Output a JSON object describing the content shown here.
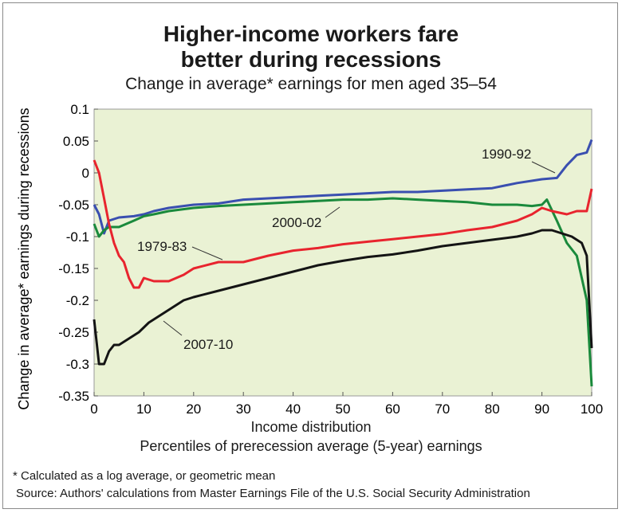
{
  "title_line1": "Higher-income workers fare",
  "title_line2": "better during recessions",
  "subtitle": "Change in average* earnings for men aged 35–54",
  "xlabel_line1": "Income distribution",
  "xlabel_line2": "Percentiles of prerecession average (5-year) earnings",
  "footnote": "* Calculated as a log average, or geometric mean",
  "source": "Source: Authors' calculations from Master Earnings File of the U.S. Social Security Administration",
  "colors": {
    "plot_bg": "#eaf2d4",
    "1990-92": "#3a4fb0",
    "2000-02": "#1a8a3c",
    "1979-83": "#e8242e",
    "2007-10": "#141414"
  },
  "chart_data": {
    "type": "line",
    "title": "Higher-income workers fare better during recessions",
    "subtitle": "Change in average* earnings for men aged 35–54",
    "xlabel": "Income distribution",
    "ylabel": "Change in average* earnings during recessions",
    "xlim": [
      0,
      100
    ],
    "ylim": [
      -0.35,
      0.1
    ],
    "xticks": [
      "0",
      "10",
      "20",
      "30",
      "40",
      "50",
      "60",
      "70",
      "80",
      "90",
      "100"
    ],
    "yticks": [
      "0.1",
      "0.05",
      "0",
      "-0.05",
      "-0.1",
      "-0.15",
      "-0.2",
      "-0.25",
      "-0.3",
      "-0.35"
    ],
    "grid": false,
    "legend": "inline labels",
    "annotations": [
      {
        "text": "1990-92",
        "series": "1990-92"
      },
      {
        "text": "2000-02",
        "series": "2000-02"
      },
      {
        "text": "1979-83",
        "series": "1979-83"
      },
      {
        "text": "2007-10",
        "series": "2007-10"
      }
    ],
    "series": [
      {
        "name": "1990-92",
        "color": "#3a4fb0",
        "x": [
          0,
          1,
          2,
          3,
          5,
          8,
          10,
          12,
          15,
          20,
          25,
          30,
          35,
          40,
          45,
          50,
          55,
          60,
          65,
          70,
          75,
          80,
          85,
          90,
          93,
          95,
          97,
          99,
          100
        ],
        "y": [
          -0.05,
          -0.065,
          -0.095,
          -0.075,
          -0.07,
          -0.068,
          -0.065,
          -0.06,
          -0.055,
          -0.05,
          -0.048,
          -0.042,
          -0.04,
          -0.038,
          -0.036,
          -0.034,
          -0.032,
          -0.03,
          -0.03,
          -0.028,
          -0.026,
          -0.024,
          -0.016,
          -0.01,
          -0.008,
          0.012,
          0.028,
          0.032,
          0.052
        ]
      },
      {
        "name": "2000-02",
        "color": "#1a8a3c",
        "x": [
          0,
          1,
          2,
          3,
          5,
          8,
          10,
          12,
          15,
          20,
          25,
          30,
          35,
          40,
          45,
          50,
          55,
          60,
          65,
          70,
          75,
          80,
          85,
          88,
          90,
          91,
          93,
          95,
          97,
          99,
          100
        ],
        "y": [
          -0.08,
          -0.1,
          -0.09,
          -0.085,
          -0.085,
          -0.075,
          -0.068,
          -0.065,
          -0.06,
          -0.055,
          -0.052,
          -0.05,
          -0.048,
          -0.046,
          -0.044,
          -0.042,
          -0.042,
          -0.04,
          -0.042,
          -0.044,
          -0.046,
          -0.05,
          -0.05,
          -0.052,
          -0.05,
          -0.042,
          -0.075,
          -0.11,
          -0.13,
          -0.2,
          -0.335
        ]
      },
      {
        "name": "1979-83",
        "color": "#e8242e",
        "x": [
          0,
          1,
          2,
          3,
          4,
          5,
          6,
          7,
          8,
          9,
          10,
          12,
          15,
          18,
          20,
          25,
          30,
          35,
          40,
          45,
          50,
          55,
          60,
          65,
          70,
          75,
          80,
          85,
          88,
          90,
          92,
          95,
          97,
          99,
          100
        ],
        "y": [
          0.02,
          0.0,
          -0.04,
          -0.08,
          -0.11,
          -0.13,
          -0.14,
          -0.165,
          -0.18,
          -0.18,
          -0.165,
          -0.17,
          -0.17,
          -0.16,
          -0.15,
          -0.14,
          -0.14,
          -0.13,
          -0.122,
          -0.118,
          -0.112,
          -0.108,
          -0.104,
          -0.1,
          -0.096,
          -0.09,
          -0.085,
          -0.075,
          -0.065,
          -0.055,
          -0.06,
          -0.065,
          -0.06,
          -0.06,
          -0.025
        ]
      },
      {
        "name": "2007-10",
        "color": "#141414",
        "x": [
          0,
          1,
          2,
          3,
          4,
          5,
          7,
          9,
          11,
          13,
          15,
          18,
          20,
          25,
          30,
          35,
          40,
          45,
          50,
          55,
          60,
          65,
          70,
          75,
          80,
          85,
          88,
          90,
          92,
          94,
          96,
          98,
          99,
          100
        ],
        "y": [
          -0.23,
          -0.3,
          -0.3,
          -0.28,
          -0.27,
          -0.27,
          -0.26,
          -0.25,
          -0.235,
          -0.225,
          -0.215,
          -0.2,
          -0.195,
          -0.185,
          -0.175,
          -0.165,
          -0.155,
          -0.145,
          -0.138,
          -0.132,
          -0.128,
          -0.122,
          -0.115,
          -0.11,
          -0.105,
          -0.1,
          -0.095,
          -0.09,
          -0.09,
          -0.095,
          -0.1,
          -0.11,
          -0.13,
          -0.275
        ]
      }
    ]
  }
}
